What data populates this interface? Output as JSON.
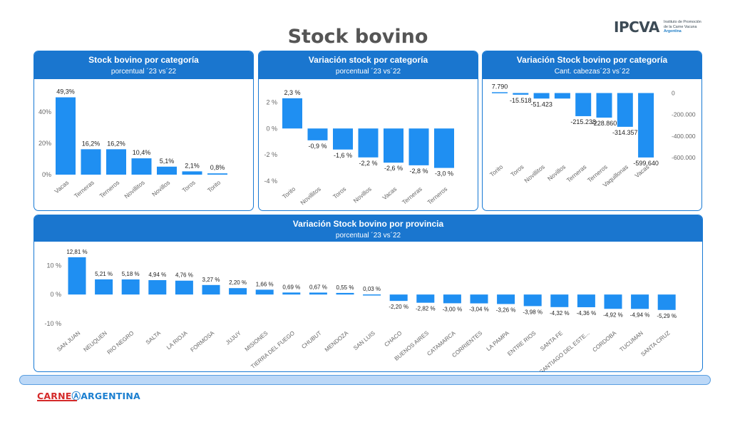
{
  "page": {
    "title": "Stock bovino"
  },
  "logo_ipcva": {
    "name": "IPCVA",
    "subtitle_lines": [
      "Instituto de Promoción",
      "de la Carne Vacuna",
      "Argentina"
    ]
  },
  "logo_carne": {
    "part1": "CARNE",
    "part2": "ARGENTINA"
  },
  "panels": {
    "cat_pct": {
      "title": "Stock bovino por categoría",
      "subtitle": "porcentual ´23 vs´22"
    },
    "cat_var": {
      "title": "Variación stock por categoría",
      "subtitle": "porcentual ´23 vs´22"
    },
    "cat_abs": {
      "title": "Variación Stock bovino por categoría",
      "subtitle": "Cant. cabezas´23 vs´22"
    },
    "prov": {
      "title": "Variación Stock bovino por provincia",
      "subtitle": "porcentual ´23 vs´22"
    }
  },
  "colors": {
    "bar": "#1f8ff2",
    "header": "#1a76cf",
    "axis_text": "#666666"
  },
  "chart_data": [
    {
      "id": "cat_pct",
      "type": "bar",
      "title": "Stock bovino por categoría",
      "subtitle": "porcentual ´23 vs´22",
      "categories": [
        "Vacas",
        "Terneras",
        "Terneros",
        "Novillitos",
        "Novillos",
        "Toros",
        "Torito"
      ],
      "values": [
        49.3,
        16.2,
        16.2,
        10.4,
        5.1,
        2.1,
        0.8
      ],
      "labels": [
        "49,3%",
        "16,2%",
        "16,2%",
        "10,4%",
        "5,1%",
        "2,1%",
        "0,8%"
      ],
      "ylim": [
        0,
        50
      ],
      "yticks": [
        0,
        20,
        40
      ],
      "ytick_labels": [
        "0%",
        "20%",
        "40%"
      ],
      "y_axis": "left",
      "grid": false
    },
    {
      "id": "cat_var",
      "type": "bar",
      "title": "Variación stock por categoría",
      "subtitle": "porcentual ´23 vs´22",
      "categories": [
        "Torito",
        "Novillitos",
        "Toros",
        "Novillos",
        "Vacas",
        "Terneras",
        "Terneros"
      ],
      "values": [
        2.3,
        -0.9,
        -1.6,
        -2.2,
        -2.6,
        -2.8,
        -3.0
      ],
      "labels": [
        "2,3 %",
        "-0,9 %",
        "-1,6 %",
        "-2,2 %",
        "-2,6 %",
        "-2,8 %",
        "-3,0 %"
      ],
      "ylim": [
        -4,
        2.4
      ],
      "yticks": [
        2,
        0,
        -2,
        -4
      ],
      "ytick_labels": [
        "2 %",
        "0 %",
        "-2 %",
        "-4 %"
      ],
      "y_axis": "left",
      "grid": false
    },
    {
      "id": "cat_abs",
      "type": "bar",
      "title": "Variación Stock bovino por categoría",
      "subtitle": "Cant. cabezas´23 vs´22",
      "categories": [
        "Torito",
        "Toros",
        "Novillitos",
        "Novillos",
        "Terneras",
        "Terneros",
        "Vaquillonas",
        "Vacas"
      ],
      "values": [
        7790,
        -15518,
        -51423,
        -51423,
        -215238,
        -228860,
        -314357,
        -599640
      ],
      "labels": [
        "7.790",
        "-15.518",
        "-51.423",
        "",
        "-215.238",
        "-228.860",
        "-314.357",
        "-599.640"
      ],
      "ylim": [
        -640000,
        10000
      ],
      "yticks": [
        0,
        -200000,
        -400000,
        -600000
      ],
      "ytick_labels": [
        "0",
        "-200.000",
        "-400.000",
        "-600.000"
      ],
      "y_axis": "right",
      "grid": false
    },
    {
      "id": "prov",
      "type": "bar",
      "title": "Variación Stock bovino por provincia",
      "subtitle": "porcentual ´23 vs´22",
      "categories": [
        "SAN JUAN",
        "NEUQUEN",
        "RIO NEGRO",
        "SALTA",
        "LA RIOJA",
        "FORMOSA",
        "JUJUY",
        "MISIONES",
        "TIERRA DEL FUEGO",
        "CHUBUT",
        "MENDOZA",
        "SAN LUIS",
        "CHACO",
        "BUENOS AIRES",
        "CATAMARCA",
        "CORRIENTES",
        "LA PAMPA",
        "ENTRE RIOS",
        "SANTA FE",
        "SANTIAGO DEL ESTE...",
        "CORDOBA",
        "TUCUMAN",
        "SANTA CRUZ"
      ],
      "values": [
        12.81,
        5.21,
        5.18,
        4.94,
        4.76,
        3.27,
        2.2,
        1.66,
        0.69,
        0.67,
        0.55,
        0.03,
        -2.2,
        -2.82,
        -3.0,
        -3.04,
        -3.26,
        -3.98,
        -4.32,
        -4.36,
        -4.92,
        -4.94,
        -5.29
      ],
      "labels": [
        "12,81 %",
        "5,21 %",
        "5,18 %",
        "4,94 %",
        "4,76 %",
        "3,27 %",
        "2,20 %",
        "1,66 %",
        "0,69 %",
        "0,67 %",
        "0,55 %",
        "0,03 %",
        "-2,20 %",
        "-2,82 %",
        "-3,00 %",
        "-3,04 %",
        "-3,26 %",
        "-3,98 %",
        "-4,32 %",
        "-4,36 %",
        "-4,92 %",
        "-4,94 %",
        "-5,29 %"
      ],
      "ylim": [
        -10,
        14
      ],
      "yticks": [
        10,
        0,
        -10
      ],
      "ytick_labels": [
        "10 %",
        "0 %",
        "-10 %"
      ],
      "y_axis": "left",
      "grid": false
    }
  ]
}
